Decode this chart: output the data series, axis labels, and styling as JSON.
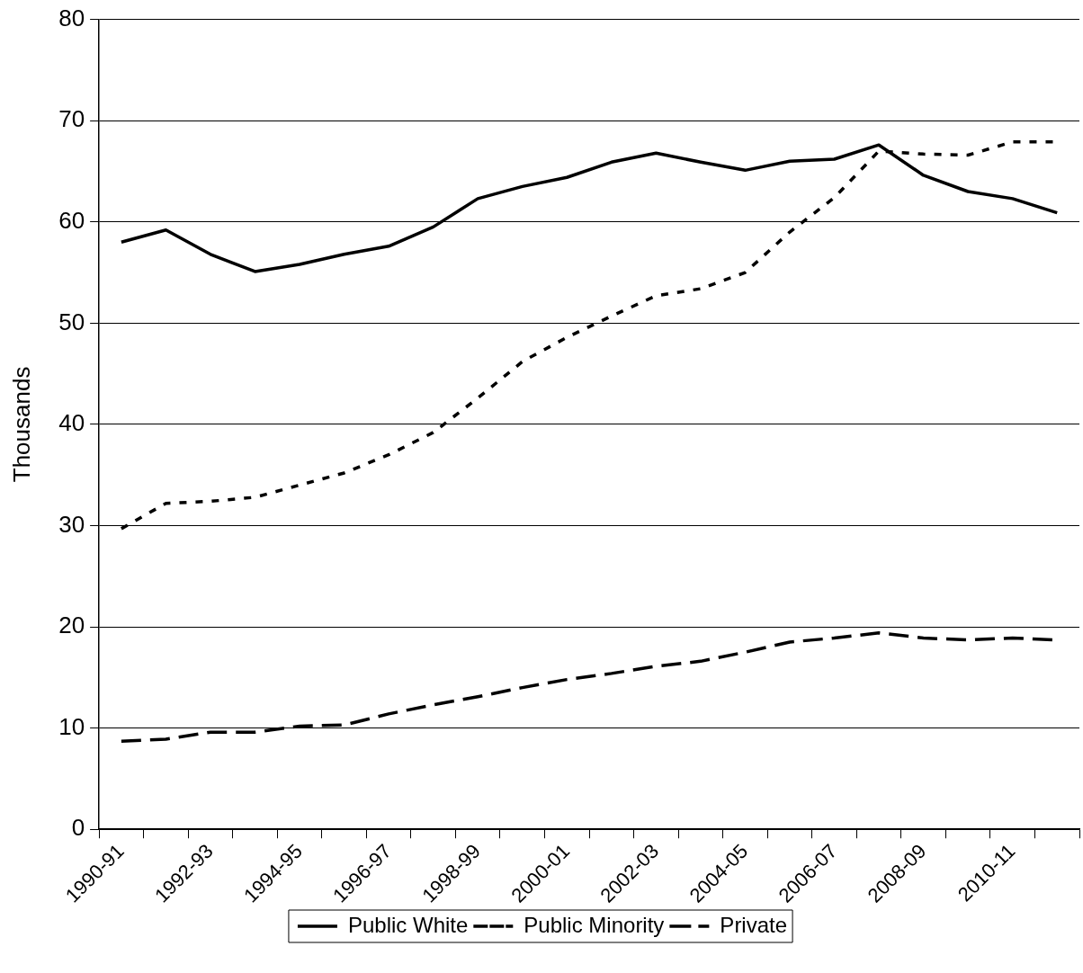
{
  "chart_data": {
    "type": "line",
    "ylabel": "Thousands",
    "categories": [
      "1990-91",
      null,
      "1992-93",
      null,
      "1994-95",
      null,
      "1996-97",
      null,
      "1998-99",
      null,
      "2000-01",
      null,
      "2002-03",
      null,
      "2004-05",
      null,
      "2006-07",
      null,
      "2008-09",
      null,
      "2010-11",
      null
    ],
    "series": [
      {
        "name": "Public White",
        "color": "#000000",
        "line_style": "solid",
        "values": [
          58,
          59.2,
          56.8,
          55.1,
          55.8,
          56.8,
          57.6,
          59.5,
          62.3,
          63.5,
          64.4,
          65.9,
          66.8,
          65.9,
          65.1,
          66,
          66.2,
          67.6,
          64.6,
          63,
          62.3,
          60.9
        ]
      },
      {
        "name": "Public Minority",
        "color": "#000000",
        "line_style": "dotted",
        "values": [
          29.7,
          32.2,
          32.4,
          32.8,
          34,
          35.2,
          37,
          39.2,
          42.6,
          46.2,
          48.6,
          50.7,
          52.7,
          53.4,
          55,
          59,
          62.4,
          67,
          66.7,
          66.6,
          67.9,
          67.9
        ]
      },
      {
        "name": "Private",
        "color": "#000000",
        "line_style": "dashed",
        "values": [
          8.7,
          8.9,
          9.6,
          9.6,
          10.2,
          10.3,
          11.4,
          12.3,
          13.1,
          14,
          14.8,
          15.4,
          16.1,
          16.6,
          17.5,
          18.5,
          18.9,
          19.4,
          18.9,
          18.7,
          18.9,
          18.7
        ]
      }
    ],
    "ylim": [
      0,
      80
    ],
    "yticks": [
      0,
      10,
      20,
      30,
      40,
      50,
      60,
      70,
      80
    ],
    "grid": "y",
    "legend": "bottom",
    "marker": "none"
  }
}
